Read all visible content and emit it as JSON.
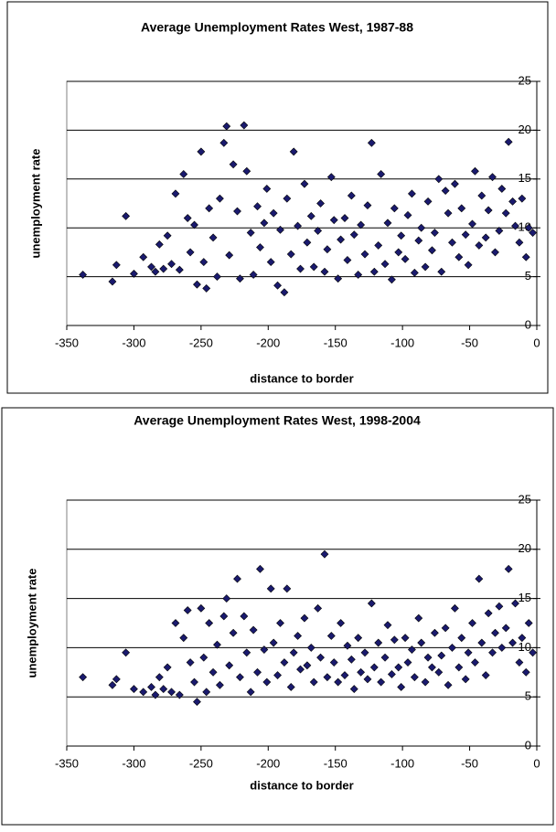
{
  "chart_data": [
    {
      "type": "scatter",
      "title": "Average Unemployment Rates West, 1987-88",
      "xlabel": "distance to border",
      "ylabel": "unemployment rate",
      "color": "#1a1a6e",
      "xlim": [
        -350,
        0
      ],
      "ylim": [
        0,
        25
      ],
      "xticks": [
        -350,
        -300,
        -250,
        -200,
        -150,
        -100,
        -50,
        0
      ],
      "yticks": [
        0,
        5,
        10,
        15,
        20,
        25
      ],
      "grid": true,
      "x": [
        -338,
        -316,
        -313,
        -306,
        -300,
        -293,
        -287,
        -284,
        -281,
        -278,
        -275,
        -272,
        -269,
        -266,
        -263,
        -260,
        -258,
        -255,
        -253,
        -250,
        -248,
        -246,
        -244,
        -241,
        -238,
        -236,
        -233,
        -231,
        -229,
        -226,
        -223,
        -221,
        -218,
        -216,
        -213,
        -211,
        -208,
        -206,
        -203,
        -201,
        -198,
        -196,
        -193,
        -191,
        -188,
        -186,
        -183,
        -181,
        -178,
        -176,
        -173,
        -171,
        -168,
        -166,
        -163,
        -161,
        -158,
        -156,
        -153,
        -151,
        -148,
        -146,
        -143,
        -141,
        -138,
        -136,
        -133,
        -131,
        -128,
        -126,
        -123,
        -121,
        -118,
        -116,
        -113,
        -111,
        -108,
        -106,
        -103,
        -101,
        -98,
        -96,
        -93,
        -91,
        -88,
        -86,
        -83,
        -81,
        -78,
        -76,
        -73,
        -71,
        -68,
        -66,
        -63,
        -61,
        -58,
        -56,
        -53,
        -51,
        -48,
        -46,
        -43,
        -41,
        -38,
        -36,
        -33,
        -31,
        -28,
        -26,
        -23,
        -21,
        -18,
        -16,
        -13,
        -11,
        -8,
        -6,
        -3
      ],
      "values": [
        5.2,
        4.5,
        6.2,
        11.2,
        5.3,
        7,
        6,
        5.5,
        8.3,
        5.8,
        9.2,
        6.3,
        13.5,
        5.7,
        15.5,
        11,
        7.5,
        10.3,
        4.2,
        17.8,
        6.5,
        3.8,
        12,
        9,
        5,
        13,
        18.7,
        20.4,
        7.2,
        16.5,
        11.7,
        4.8,
        20.5,
        15.8,
        9.5,
        5.2,
        12.2,
        8,
        10.5,
        14,
        6.5,
        11.5,
        4.1,
        9.8,
        3.4,
        13,
        7.3,
        17.8,
        10.2,
        5.8,
        14.5,
        8.5,
        11.2,
        6,
        9.7,
        12.5,
        5.5,
        7.8,
        15.2,
        10.8,
        4.8,
        8.8,
        11,
        6.7,
        13.3,
        9.3,
        5.2,
        10.3,
        7.3,
        12.3,
        18.7,
        5.5,
        8.2,
        15.5,
        6.3,
        10.5,
        4.7,
        12,
        7.5,
        9.2,
        6.8,
        11.3,
        13.5,
        5.4,
        8.7,
        10,
        6,
        12.7,
        7.7,
        9.5,
        15,
        5.5,
        13.8,
        11.5,
        8.5,
        14.5,
        7,
        12,
        9.3,
        6.2,
        10.4,
        15.8,
        8.2,
        13.3,
        9,
        11.8,
        15.2,
        7.5,
        9.7,
        14,
        11.5,
        18.8,
        12.7,
        10.2,
        8.5,
        13,
        7,
        10,
        9.5
      ]
    },
    {
      "type": "scatter",
      "title": "Average Unemployment Rates West, 1998-2004",
      "xlabel": "distance to border",
      "ylabel": "unemployment rate",
      "color": "#1a1a6e",
      "xlim": [
        -350,
        0
      ],
      "ylim": [
        0,
        25
      ],
      "xticks": [
        -350,
        -300,
        -250,
        -200,
        -150,
        -100,
        -50,
        0
      ],
      "yticks": [
        0,
        5,
        10,
        15,
        20,
        25
      ],
      "grid": true,
      "x": [
        -338,
        -316,
        -313,
        -306,
        -300,
        -293,
        -287,
        -284,
        -281,
        -278,
        -275,
        -272,
        -269,
        -266,
        -263,
        -260,
        -258,
        -255,
        -253,
        -250,
        -248,
        -246,
        -244,
        -241,
        -238,
        -236,
        -233,
        -231,
        -229,
        -226,
        -223,
        -221,
        -218,
        -216,
        -213,
        -211,
        -208,
        -206,
        -203,
        -201,
        -198,
        -196,
        -193,
        -191,
        -188,
        -186,
        -183,
        -181,
        -178,
        -176,
        -173,
        -171,
        -168,
        -166,
        -163,
        -161,
        -158,
        -156,
        -153,
        -151,
        -148,
        -146,
        -143,
        -141,
        -138,
        -136,
        -133,
        -131,
        -128,
        -126,
        -123,
        -121,
        -118,
        -116,
        -113,
        -111,
        -108,
        -106,
        -103,
        -101,
        -98,
        -96,
        -93,
        -91,
        -88,
        -86,
        -83,
        -81,
        -78,
        -76,
        -73,
        -71,
        -68,
        -66,
        -63,
        -61,
        -58,
        -56,
        -53,
        -51,
        -48,
        -46,
        -43,
        -41,
        -38,
        -36,
        -33,
        -31,
        -28,
        -26,
        -23,
        -21,
        -18,
        -16,
        -13,
        -11,
        -8,
        -6,
        -3
      ],
      "values": [
        7,
        6.2,
        6.8,
        9.5,
        5.8,
        5.5,
        6,
        5.2,
        7,
        5.8,
        8,
        5.5,
        12.5,
        5.2,
        11,
        13.8,
        8.5,
        6.5,
        4.5,
        14,
        9,
        5.5,
        12.5,
        7.5,
        10.3,
        6.2,
        13.2,
        15,
        8.2,
        11.5,
        17,
        7,
        13.2,
        9.5,
        5.5,
        11.8,
        7.5,
        18,
        9.8,
        6.5,
        16,
        10.5,
        7.2,
        12.5,
        8.5,
        16,
        6,
        9.5,
        11.2,
        7.8,
        13,
        8.2,
        10,
        6.5,
        14,
        9,
        19.5,
        7,
        11.2,
        8.5,
        6.5,
        12.5,
        7.2,
        10.2,
        8.8,
        5.8,
        11,
        7.5,
        9.5,
        6.8,
        14.5,
        8,
        10.5,
        6.5,
        9,
        12.3,
        7.3,
        10.8,
        8,
        6,
        11,
        8.5,
        9.8,
        7,
        13,
        10.5,
        6.5,
        9,
        8,
        11.5,
        7.5,
        9.2,
        12,
        6.2,
        10,
        14,
        8,
        11,
        6.8,
        9.5,
        12.5,
        8.5,
        17,
        10.5,
        7.2,
        13.5,
        9.5,
        11.5,
        14.2,
        10,
        12,
        18,
        10.5,
        14.5,
        8.5,
        11,
        7.5,
        12.5,
        9.5
      ]
    }
  ]
}
